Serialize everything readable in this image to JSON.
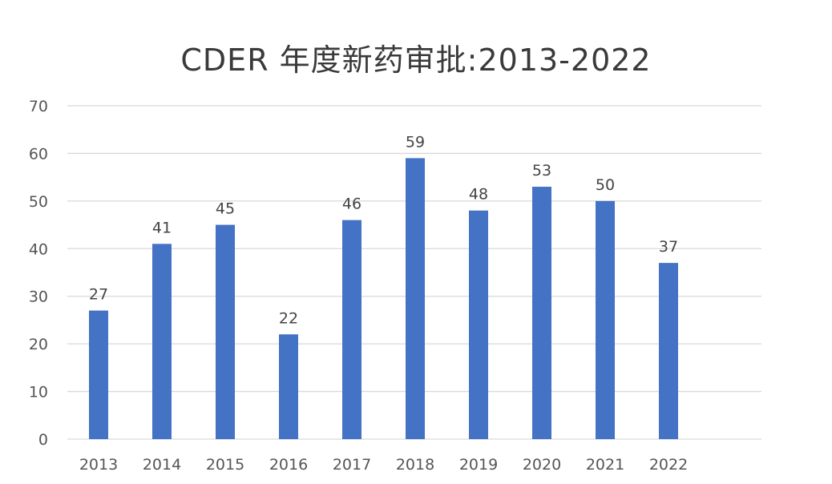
{
  "chart_data": {
    "type": "bar",
    "title": "CDER 年度新药审批:2013-2022",
    "xlabel": "",
    "ylabel": "",
    "categories": [
      "2013",
      "2014",
      "2015",
      "2016",
      "2017",
      "2018",
      "2019",
      "2020",
      "2021",
      "2022"
    ],
    "values": [
      27,
      41,
      45,
      22,
      46,
      59,
      48,
      53,
      50,
      37
    ],
    "data_labels": [
      "27",
      "41",
      "45",
      "22",
      "46",
      "59",
      "48",
      "53",
      "50",
      "37"
    ],
    "ylim": [
      0,
      70
    ],
    "yticks": [
      0,
      10,
      20,
      30,
      40,
      50,
      60,
      70
    ],
    "grid": true,
    "legend": "none",
    "bar_color": "#4472c4"
  }
}
